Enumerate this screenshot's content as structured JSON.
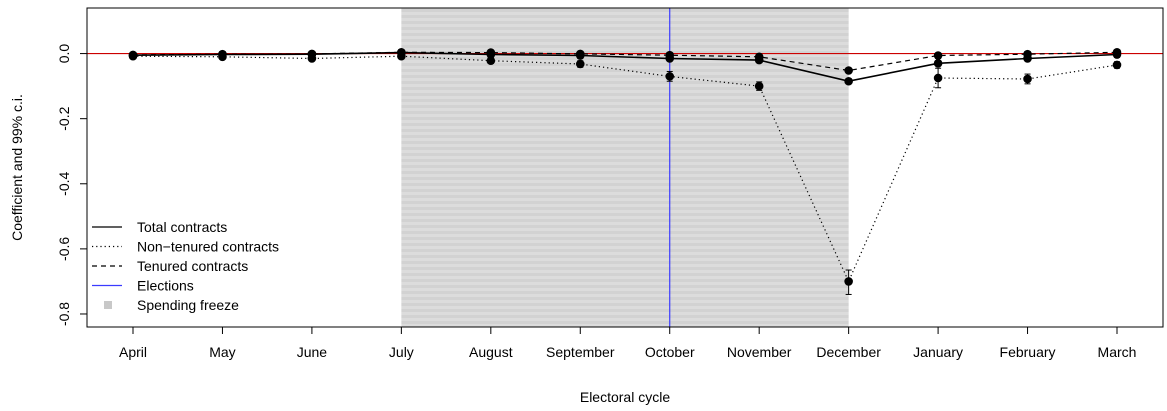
{
  "chart_data": {
    "type": "line",
    "title": "",
    "xlabel": "Electoral cycle",
    "ylabel": "Coefficient and 99% c.i.",
    "categories": [
      "April",
      "May",
      "June",
      "July",
      "August",
      "September",
      "October",
      "November",
      "December",
      "January",
      "February",
      "March"
    ],
    "ylim": [
      -0.84,
      0.14
    ],
    "yticks": [
      0.0,
      -0.2,
      -0.4,
      -0.6,
      -0.8
    ],
    "ytick_labels": [
      "0.0",
      "-0.2",
      "-0.4",
      "-0.6",
      "-0.8"
    ],
    "grid": false,
    "legend_position": "bottom-left",
    "series": [
      {
        "name": "Total contracts",
        "line_style": "solid",
        "color": "#000000",
        "values": [
          -0.005,
          -0.003,
          -0.002,
          0.003,
          -0.003,
          -0.006,
          -0.015,
          -0.02,
          -0.085,
          -0.03,
          -0.015,
          -0.003
        ]
      },
      {
        "name": "Non−tenured contracts",
        "line_style": "dotted",
        "color": "#000000",
        "values": [
          -0.008,
          -0.01,
          -0.015,
          -0.008,
          -0.022,
          -0.032,
          -0.07,
          -0.1,
          -0.7,
          -0.075,
          -0.078,
          -0.035
        ],
        "ci_low": [
          -0.014,
          -0.016,
          -0.021,
          -0.014,
          -0.03,
          -0.042,
          -0.085,
          -0.113,
          -0.74,
          -0.105,
          -0.093,
          -0.045
        ],
        "ci_high": [
          -0.002,
          -0.004,
          -0.009,
          -0.002,
          -0.014,
          -0.022,
          -0.055,
          -0.087,
          -0.665,
          -0.045,
          -0.063,
          -0.025
        ]
      },
      {
        "name": "Tenured contracts",
        "line_style": "dashed",
        "color": "#000000",
        "values": [
          -0.004,
          -0.002,
          -0.001,
          0.004,
          0.003,
          -0.001,
          -0.005,
          -0.01,
          -0.052,
          -0.006,
          -0.002,
          0.004
        ]
      }
    ],
    "reference_lines": [
      {
        "name": "Zero",
        "axis": "y",
        "value": 0.0,
        "color": "#cc0000"
      },
      {
        "name": "Elections",
        "axis": "x",
        "category": "October",
        "color": "#3b3bff"
      }
    ],
    "shaded_region": {
      "name": "Spending freeze",
      "from": "July",
      "to": "December",
      "color": "#d9d9d9"
    },
    "legend": [
      {
        "label": "Total contracts",
        "key": "solid"
      },
      {
        "label": "Non−tenured contracts",
        "key": "dotted"
      },
      {
        "label": "Tenured contracts",
        "key": "dashed"
      },
      {
        "label": "Elections",
        "key": "blue-line"
      },
      {
        "label": "Spending freeze",
        "key": "grey-square"
      }
    ]
  }
}
